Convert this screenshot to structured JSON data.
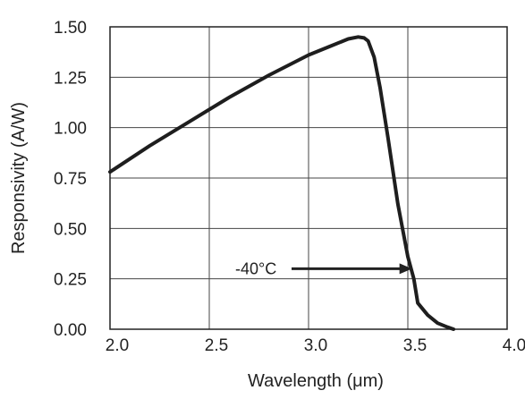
{
  "chart_data": {
    "type": "line",
    "title": "",
    "xlabel": "Wavelength (μm)",
    "ylabel": "Responsivity (A/W)",
    "xlim": [
      2.0,
      4.0
    ],
    "ylim": [
      0.0,
      1.5
    ],
    "x_ticks": [
      "2.0",
      "2.5",
      "3.0",
      "3.5",
      "4.0"
    ],
    "y_ticks": [
      "0.00",
      "0.25",
      "0.50",
      "0.75",
      "1.00",
      "1.25",
      "1.50"
    ],
    "grid": true,
    "colors": {
      "line": "#1e1e1e",
      "grid": "#444444",
      "axis_text": "#222222"
    },
    "series": [
      {
        "x": [
          2.0,
          2.2,
          2.4,
          2.6,
          2.8,
          3.0,
          3.1,
          3.2,
          3.25,
          3.28,
          3.3,
          3.33,
          3.36,
          3.4,
          3.45,
          3.5,
          3.53,
          3.55,
          3.6,
          3.65,
          3.7,
          3.73
        ],
        "y": [
          0.78,
          0.91,
          1.03,
          1.15,
          1.26,
          1.36,
          1.4,
          1.44,
          1.45,
          1.445,
          1.43,
          1.35,
          1.2,
          0.95,
          0.62,
          0.36,
          0.25,
          0.13,
          0.07,
          0.03,
          0.01,
          0.0
        ]
      }
    ],
    "annotations": [
      {
        "text": "-40°C",
        "x": 3.53,
        "y": 0.3,
        "arrow": "right"
      }
    ]
  }
}
